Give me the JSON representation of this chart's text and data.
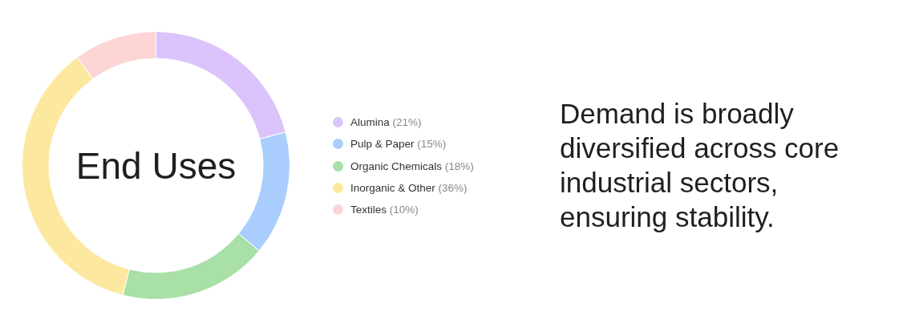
{
  "chart_data": {
    "type": "donut",
    "title": "End Uses",
    "categories": [
      "Alumina",
      "Pulp & Paper",
      "Organic Chemicals",
      "Inorganic & Other",
      "Textiles"
    ],
    "values": [
      21,
      15,
      18,
      36,
      10
    ],
    "value_labels": [
      "(21%)",
      "(15%)",
      "(18%)",
      "(36%)",
      "(10%)"
    ],
    "colors": [
      "#dcc3fb",
      "#a9cdfd",
      "#a8e0a8",
      "#fde8a0",
      "#fdd5d5"
    ],
    "legend": "right",
    "annotations": [
      "Demand is broadly diversified across core industrial sectors, ensuring stability."
    ]
  }
}
